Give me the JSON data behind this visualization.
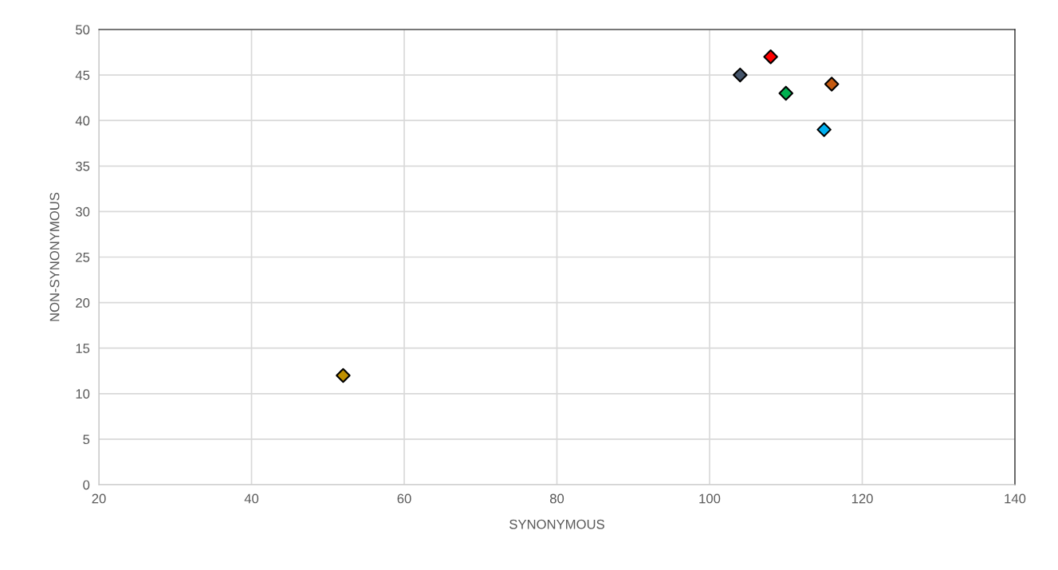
{
  "chart_data": {
    "type": "scatter",
    "xlabel": "SYNONYMOUS",
    "ylabel": "NON-SYNONYMOUS",
    "series": [
      {
        "x": [
          104,
          108,
          110,
          116,
          115,
          52
        ],
        "values": [
          45,
          47,
          43,
          44,
          39,
          12
        ],
        "colors": [
          "#44546a",
          "#ff0000",
          "#00b050",
          "#c55a11",
          "#00b0f0",
          "#bf9000"
        ]
      }
    ],
    "xlim": [
      20,
      140
    ],
    "xticks": [
      20,
      40,
      60,
      80,
      100,
      120,
      140
    ],
    "ylim": [
      0,
      50
    ],
    "yticks": [
      0,
      5,
      10,
      15,
      20,
      25,
      30,
      35,
      40,
      45,
      50
    ],
    "grid": true,
    "marker": "diamond"
  }
}
